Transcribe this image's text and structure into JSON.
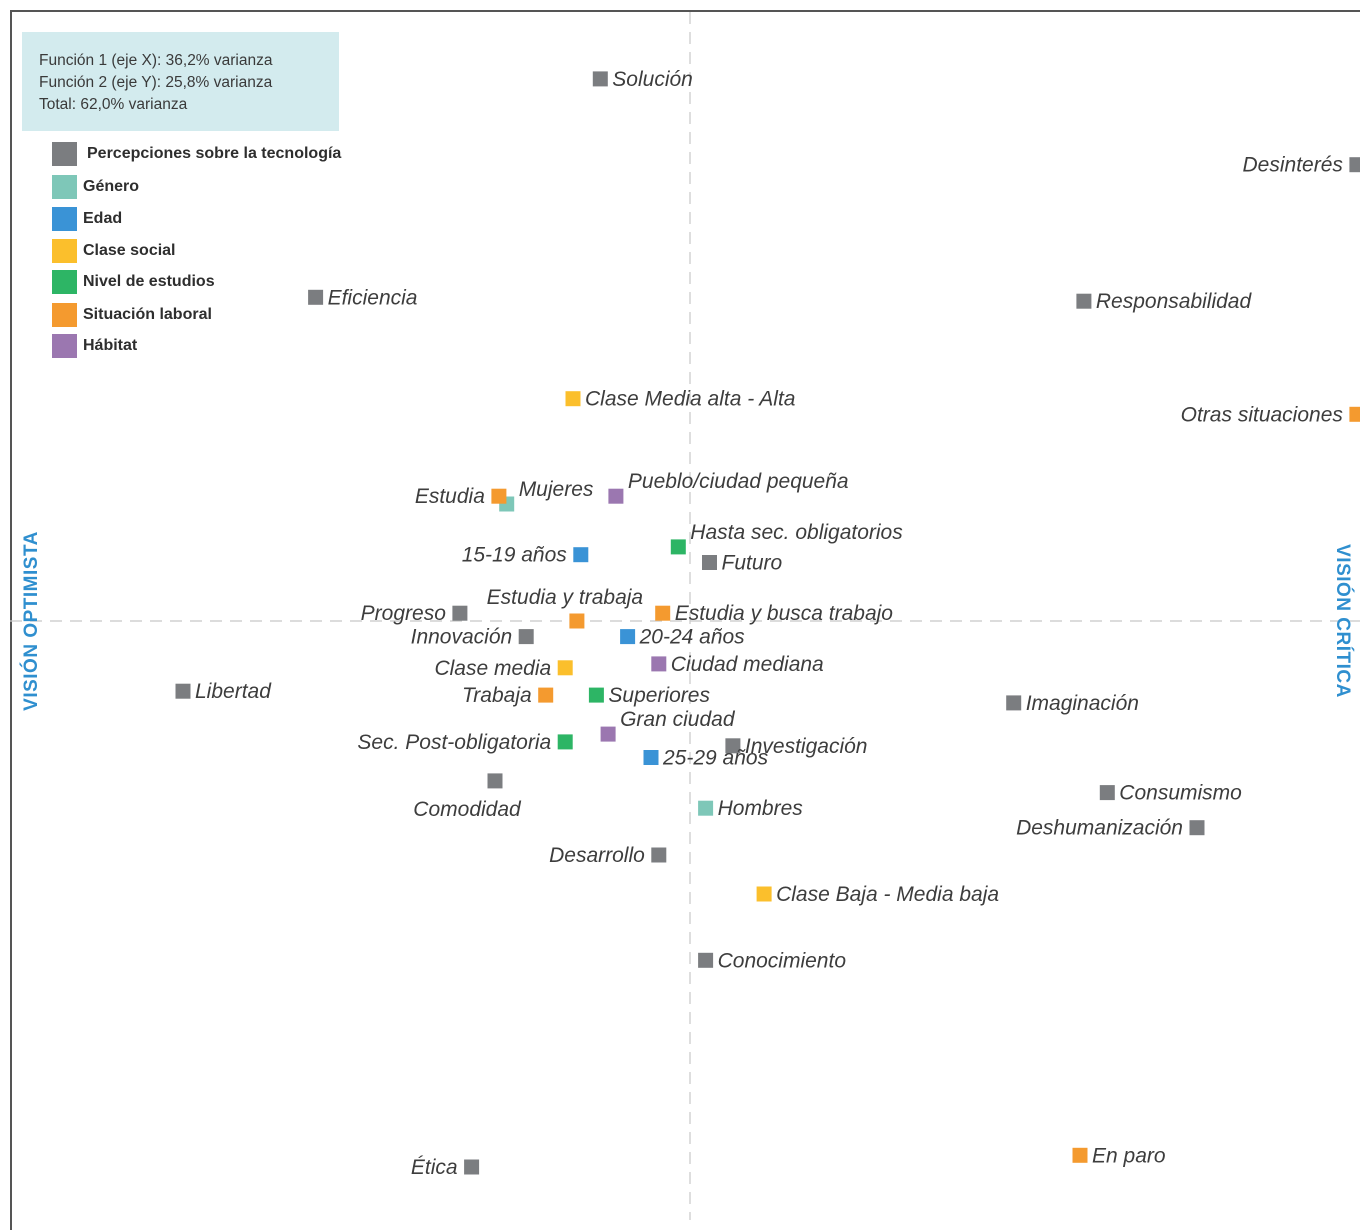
{
  "info_box": {
    "lines": [
      "Función 1 (eje X): 36,2% varianza",
      "Función 2 (eje Y): 25,8% varianza",
      "Total: 62,0% varianza"
    ]
  },
  "axis_titles": {
    "left": "VISIÓN OPTIMISTA",
    "right": "VISIÓN CRÍTICA"
  },
  "colors": {
    "Percepciones sobre la tecnología": "#7b7d80",
    "Género": "#7ec7b8",
    "Edad": "#3a93d6",
    "Clase social": "#fbbf2c",
    "Nivel de estudios": "#2db565",
    "Situación laboral": "#f49a2f",
    "Hábitat": "#9b77b0",
    "title": "#2f8fcf",
    "info_box_bg": "#d3ebee"
  },
  "chart_data": {
    "type": "scatter",
    "grid": false,
    "legend_position": "top-left",
    "legend": [
      "Percepciones sobre la tecnología",
      "Género",
      "Edad",
      "Clase social",
      "Nivel de estudios",
      "Situación laboral",
      "Hábitat"
    ],
    "points": [
      {
        "label": "Solución",
        "group": "Percepciones sobre la tecnología",
        "x": -0.23,
        "y": 1.39,
        "label_side": "right"
      },
      {
        "label": "Desinterés",
        "group": "Percepciones sobre la tecnología",
        "x": 1.71,
        "y": 1.17,
        "label_side": "left"
      },
      {
        "label": "Eficiencia",
        "group": "Percepciones sobre la tecnología",
        "x": -0.96,
        "y": 0.83,
        "label_side": "right"
      },
      {
        "label": "Responsabilidad",
        "group": "Percepciones sobre la tecnología",
        "x": 1.01,
        "y": 0.82,
        "label_side": "right"
      },
      {
        "label": "Futuro",
        "group": "Percepciones sobre la tecnología",
        "x": 0.05,
        "y": 0.15,
        "label_side": "right"
      },
      {
        "label": "Progreso",
        "group": "Percepciones sobre la tecnología",
        "x": -0.59,
        "y": 0.02,
        "label_side": "left"
      },
      {
        "label": "Innovación",
        "group": "Percepciones sobre la tecnología",
        "x": -0.42,
        "y": -0.04,
        "label_side": "left"
      },
      {
        "label": "Libertad",
        "group": "Percepciones sobre la tecnología",
        "x": -1.3,
        "y": -0.18,
        "label_side": "right"
      },
      {
        "label": "Imaginación",
        "group": "Percepciones sobre la tecnología",
        "x": 0.83,
        "y": -0.21,
        "label_side": "right"
      },
      {
        "label": "Investigación",
        "group": "Percepciones sobre la tecnología",
        "x": 0.11,
        "y": -0.32,
        "label_side": "right"
      },
      {
        "label": "Comodidad",
        "group": "Percepciones sobre la tecnología",
        "x": -0.5,
        "y": -0.41,
        "label_side": "below"
      },
      {
        "label": "Consumismo",
        "group": "Percepciones sobre la tecnología",
        "x": 1.07,
        "y": -0.44,
        "label_side": "right"
      },
      {
        "label": "Deshumanización",
        "group": "Percepciones sobre la tecnología",
        "x": 1.3,
        "y": -0.53,
        "label_side": "left"
      },
      {
        "label": "Desarrollo",
        "group": "Percepciones sobre la tecnología",
        "x": -0.08,
        "y": -0.6,
        "label_side": "left"
      },
      {
        "label": "Conocimiento",
        "group": "Percepciones sobre la tecnología",
        "x": 0.04,
        "y": -0.87,
        "label_side": "right"
      },
      {
        "label": "Ética",
        "group": "Percepciones sobre la tecnología",
        "x": -0.56,
        "y": -1.4,
        "label_side": "left"
      },
      {
        "label": "Mujeres",
        "group": "Género",
        "x": -0.47,
        "y": 0.3,
        "label_side": "above-right"
      },
      {
        "label": "Hombres",
        "group": "Género",
        "x": 0.04,
        "y": -0.48,
        "label_side": "right"
      },
      {
        "label": "15-19 años",
        "group": "Edad",
        "x": -0.28,
        "y": 0.17,
        "label_side": "left"
      },
      {
        "label": "20-24 años",
        "group": "Edad",
        "x": -0.16,
        "y": -0.04,
        "label_side": "right"
      },
      {
        "label": "25-29 años",
        "group": "Edad",
        "x": -0.1,
        "y": -0.35,
        "label_side": "right"
      },
      {
        "label": "Clase Media alta - Alta",
        "group": "Clase social",
        "x": -0.3,
        "y": 0.57,
        "label_side": "right"
      },
      {
        "label": "Clase media",
        "group": "Clase social",
        "x": -0.32,
        "y": -0.12,
        "label_side": "left"
      },
      {
        "label": "Clase Baja - Media baja",
        "group": "Clase social",
        "x": 0.19,
        "y": -0.7,
        "label_side": "right"
      },
      {
        "label": "Hasta sec. obligatorios",
        "group": "Nivel de estudios",
        "x": -0.03,
        "y": 0.19,
        "label_side": "above-right"
      },
      {
        "label": "Superiores",
        "group": "Nivel de estudios",
        "x": -0.24,
        "y": -0.19,
        "label_side": "right"
      },
      {
        "label": "Sec. Post-obligatoria",
        "group": "Nivel de estudios",
        "x": -0.32,
        "y": -0.31,
        "label_side": "left"
      },
      {
        "label": "Otras situaciones",
        "group": "Situación laboral",
        "x": 1.71,
        "y": 0.53,
        "label_side": "left"
      },
      {
        "label": "Estudia",
        "group": "Situación laboral",
        "x": -0.49,
        "y": 0.32,
        "label_side": "left"
      },
      {
        "label": "Estudia y trabaja",
        "group": "Situación laboral",
        "x": -0.29,
        "y": 0.0,
        "label_side": "above"
      },
      {
        "label": "Estudia y busca trabajo",
        "group": "Situación laboral",
        "x": -0.07,
        "y": 0.02,
        "label_side": "right"
      },
      {
        "label": "Trabaja",
        "group": "Situación laboral",
        "x": -0.37,
        "y": -0.19,
        "label_side": "left"
      },
      {
        "label": "En paro",
        "group": "Situación laboral",
        "x": 1.0,
        "y": -1.37,
        "label_side": "right"
      },
      {
        "label": "Pueblo/ciudad pequeña",
        "group": "Hábitat",
        "x": -0.19,
        "y": 0.32,
        "label_side": "above-right"
      },
      {
        "label": "Ciudad mediana",
        "group": "Hábitat",
        "x": -0.08,
        "y": -0.11,
        "label_side": "right"
      },
      {
        "label": "Gran ciudad",
        "group": "Hábitat",
        "x": -0.21,
        "y": -0.29,
        "label_side": "above-right"
      }
    ]
  }
}
